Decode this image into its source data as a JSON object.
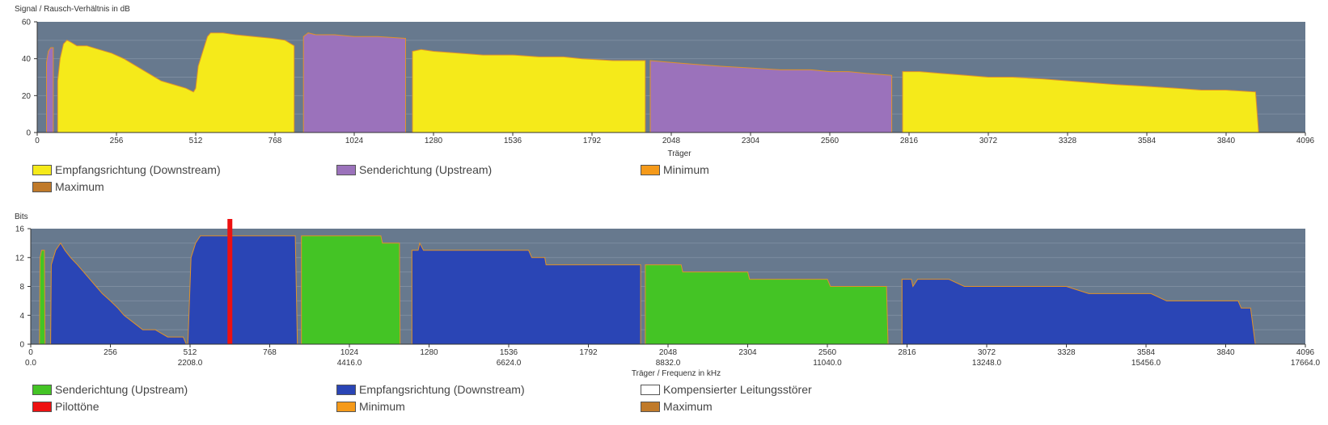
{
  "chart_data": [
    {
      "type": "area",
      "ylabel": "Signal / Rausch-Verhältnis in dB",
      "xlabel": "Träger",
      "xlim": [
        0,
        4096
      ],
      "ylim": [
        0,
        60
      ],
      "x_ticks": [
        0,
        256,
        512,
        768,
        1024,
        1280,
        1536,
        1792,
        2048,
        2304,
        2560,
        2816,
        3072,
        3328,
        3584,
        3840,
        4096
      ],
      "y_ticks": [
        0,
        20,
        40,
        60
      ],
      "grid": true,
      "legend": "bottom",
      "series": [
        {
          "name": "Empfangsrichtung (Downstream)",
          "color": "#f5ea1a",
          "segments": [
            [
              [
                66,
                0
              ],
              [
                66,
                28
              ],
              [
                74,
                40
              ],
              [
                85,
                48
              ],
              [
                96,
                50
              ],
              [
                108,
                49
              ],
              [
                128,
                47
              ],
              [
                160,
                47
              ],
              [
                200,
                45
              ],
              [
                240,
                43
              ],
              [
                280,
                40
              ],
              [
                320,
                36
              ],
              [
                360,
                32
              ],
              [
                400,
                28
              ],
              [
                440,
                26
              ],
              [
                480,
                24
              ],
              [
                505,
                22
              ],
              [
                512,
                24
              ],
              [
                520,
                36
              ],
              [
                535,
                44
              ],
              [
                550,
                52
              ],
              [
                560,
                54
              ],
              [
                600,
                54
              ],
              [
                640,
                53
              ],
              [
                700,
                52
              ],
              [
                760,
                51
              ],
              [
                800,
                50
              ],
              [
                830,
                47
              ],
              [
                830,
                0
              ]
            ],
            [
              [
                1212,
                0
              ],
              [
                1212,
                44
              ],
              [
                1240,
                45
              ],
              [
                1280,
                44
              ],
              [
                1360,
                43
              ],
              [
                1440,
                42
              ],
              [
                1536,
                42
              ],
              [
                1620,
                41
              ],
              [
                1700,
                41
              ],
              [
                1760,
                40
              ],
              [
                1860,
                39
              ],
              [
                1964,
                39
              ],
              [
                1964,
                0
              ]
            ],
            [
              [
                2795,
                0
              ],
              [
                2795,
                33
              ],
              [
                2850,
                33
              ],
              [
                2920,
                32
              ],
              [
                3000,
                31
              ],
              [
                3072,
                30
              ],
              [
                3150,
                30
              ],
              [
                3250,
                29
              ],
              [
                3328,
                28
              ],
              [
                3400,
                27
              ],
              [
                3480,
                26
              ],
              [
                3584,
                25
              ],
              [
                3680,
                24
              ],
              [
                3760,
                23
              ],
              [
                3840,
                23
              ],
              [
                3935,
                22
              ],
              [
                3945,
                0
              ]
            ]
          ]
        },
        {
          "name": "Senderichtung (Upstream)",
          "color": "#9b72bb",
          "segments": [
            [
              [
                30,
                0
              ],
              [
                30,
                38
              ],
              [
                36,
                44
              ],
              [
                44,
                46
              ],
              [
                52,
                46
              ],
              [
                52,
                0
              ]
            ],
            [
              [
                860,
                0
              ],
              [
                860,
                52
              ],
              [
                875,
                54
              ],
              [
                900,
                53
              ],
              [
                960,
                53
              ],
              [
                1024,
                52
              ],
              [
                1100,
                52
              ],
              [
                1190,
                51
              ],
              [
                1190,
                0
              ]
            ],
            [
              [
                1980,
                0
              ],
              [
                1980,
                39
              ],
              [
                2048,
                38
              ],
              [
                2120,
                37
              ],
              [
                2200,
                36
              ],
              [
                2304,
                35
              ],
              [
                2400,
                34
              ],
              [
                2500,
                34
              ],
              [
                2560,
                33
              ],
              [
                2620,
                33
              ],
              [
                2680,
                32
              ],
              [
                2760,
                31
              ],
              [
                2760,
                0
              ]
            ]
          ]
        },
        {
          "name": "Minimum",
          "color": "#f59a1a"
        },
        {
          "name": "Maximum",
          "color": "#c07a2a"
        }
      ]
    },
    {
      "type": "area",
      "ylabel": "Bits",
      "xlabel": "Träger / Frequenz in kHz",
      "xlim": [
        0,
        4096
      ],
      "ylim": [
        0,
        16
      ],
      "x_ticks": [
        0,
        256,
        512,
        768,
        1024,
        1280,
        1536,
        1792,
        2048,
        2304,
        2560,
        2816,
        3072,
        3328,
        3584,
        3840,
        4096
      ],
      "x_freq_labels": [
        "0.0",
        "",
        "2208.0",
        "",
        "4416.0",
        "",
        "6624.0",
        "",
        "8832.0",
        "",
        "11040.0",
        "",
        "13248.0",
        "",
        "15456.0",
        "",
        "17664.0"
      ],
      "y_ticks": [
        0,
        4,
        8,
        12,
        16
      ],
      "grid": true,
      "legend": "bottom",
      "series": [
        {
          "name": "Senderichtung (Upstream)",
          "color": "#44c425",
          "segments": [
            [
              [
                28,
                0
              ],
              [
                30,
                12
              ],
              [
                35,
                13
              ],
              [
                44,
                13
              ],
              [
                46,
                0
              ]
            ],
            [
              [
                870,
                0
              ],
              [
                870,
                15
              ],
              [
                1125,
                15
              ],
              [
                1130,
                14
              ],
              [
                1185,
                14
              ],
              [
                1187,
                0
              ]
            ],
            [
              [
                1975,
                0
              ],
              [
                1975,
                11
              ],
              [
                2090,
                11
              ],
              [
                2095,
                10
              ],
              [
                2304,
                10
              ],
              [
                2310,
                9
              ],
              [
                2560,
                9
              ],
              [
                2570,
                8
              ],
              [
                2750,
                8
              ],
              [
                2755,
                0
              ]
            ]
          ]
        },
        {
          "name": "Empfangsrichtung (Downstream)",
          "color": "#2a45b5",
          "segments": [
            [
              [
                64,
                0
              ],
              [
                66,
                11
              ],
              [
                80,
                13
              ],
              [
                96,
                14
              ],
              [
                110,
                13
              ],
              [
                128,
                12
              ],
              [
                150,
                11
              ],
              [
                170,
                10
              ],
              [
                190,
                9
              ],
              [
                210,
                8
              ],
              [
                230,
                7
              ],
              [
                256,
                6
              ],
              [
                280,
                5
              ],
              [
                300,
                4
              ],
              [
                330,
                3
              ],
              [
                360,
                2
              ],
              [
                400,
                2
              ],
              [
                440,
                1
              ],
              [
                490,
                1
              ],
              [
                500,
                0
              ]
            ],
            [
              [
                505,
                0
              ],
              [
                515,
                12
              ],
              [
                530,
                14
              ],
              [
                545,
                15
              ],
              [
                750,
                15
              ],
              [
                850,
                15
              ],
              [
                857,
                0
              ]
            ],
            [
              [
                1225,
                0
              ],
              [
                1225,
                13
              ],
              [
                1245,
                13
              ],
              [
                1250,
                14
              ],
              [
                1262,
                13
              ],
              [
                1600,
                13
              ],
              [
                1610,
                12
              ],
              [
                1652,
                12
              ],
              [
                1656,
                11
              ],
              [
                1744,
                11
              ],
              [
                1960,
                11
              ],
              [
                1960,
                0
              ]
            ],
            [
              [
                2800,
                0
              ],
              [
                2800,
                9
              ],
              [
                2830,
                9
              ],
              [
                2835,
                8
              ],
              [
                2850,
                9
              ],
              [
                2950,
                9
              ],
              [
                3000,
                8
              ],
              [
                3100,
                8
              ],
              [
                3200,
                8
              ],
              [
                3328,
                8
              ],
              [
                3400,
                7
              ],
              [
                3500,
                7
              ],
              [
                3600,
                7
              ],
              [
                3650,
                6
              ],
              [
                3880,
                6
              ],
              [
                3890,
                5
              ],
              [
                3920,
                5
              ],
              [
                3935,
                0
              ]
            ]
          ]
        },
        {
          "name": "Kompensierter Leitungsstörer",
          "color": "#ffffff"
        },
        {
          "name": "Pilottöne",
          "color": "#ee1111",
          "x": [
            640
          ]
        },
        {
          "name": "Minimum",
          "color": "#f59a1a"
        },
        {
          "name": "Maximum",
          "color": "#c07a2a"
        }
      ]
    }
  ]
}
